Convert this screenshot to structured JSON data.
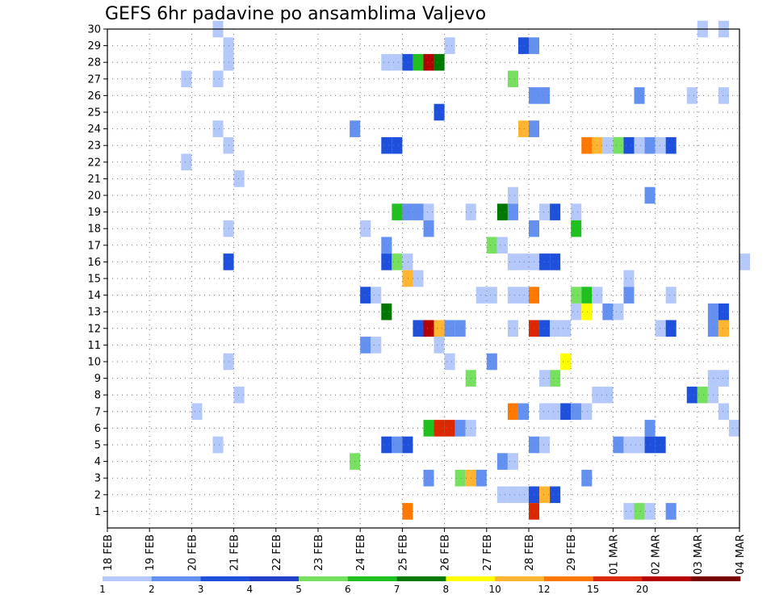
{
  "title": "GEFS 6hr padavine po ansamblima Valjevo",
  "chart_data": {
    "type": "heatmap",
    "title": "GEFS 6hr padavine po ansamblima Valjevo",
    "x_tick_labels": [
      "18 FEB",
      "19 FEB",
      "20 FEB",
      "21 FEB",
      "22 FEB",
      "23 FEB",
      "24 FEB",
      "25 FEB",
      "26 FEB",
      "27 FEB",
      "28 FEB",
      "29 FEB",
      "01 MAR",
      "02 MAR",
      "03 MAR",
      "04 MAR"
    ],
    "y_tick_labels": [
      "1",
      "2",
      "3",
      "4",
      "5",
      "6",
      "7",
      "8",
      "9",
      "10",
      "11",
      "12",
      "13",
      "14",
      "15",
      "16",
      "17",
      "18",
      "19",
      "20",
      "21",
      "22",
      "23",
      "24",
      "25",
      "26",
      "27",
      "28",
      "29",
      "30"
    ],
    "x_range_days": [
      0,
      15
    ],
    "y_range": [
      0,
      30
    ],
    "step_hours": 6,
    "grid": true,
    "colorbar": {
      "levels": [
        1,
        2,
        3,
        4,
        5,
        6,
        7,
        8,
        10,
        12,
        15,
        20
      ],
      "labels": [
        "1",
        "2",
        "3",
        "4",
        "5",
        "6",
        "7",
        "8",
        "10",
        "12",
        "15",
        "20"
      ],
      "colors": [
        "#b4c8fa",
        "#6490f0",
        "#1e50dc",
        "#2040c8",
        "#78e060",
        "#20c020",
        "#007800",
        "#ffff00",
        "#ffb432",
        "#ff7800",
        "#dc2800",
        "#b40000",
        "#780000"
      ]
    },
    "cells": [
      {
        "day": 2.5,
        "member": 30,
        "bin": 0
      },
      {
        "day": 14.0,
        "member": 30,
        "bin": 0
      },
      {
        "day": 14.5,
        "member": 30,
        "bin": 0
      },
      {
        "day": 2.75,
        "member": 29,
        "bin": 0
      },
      {
        "day": 8.0,
        "member": 29,
        "bin": 0
      },
      {
        "day": 9.75,
        "member": 29,
        "bin": 2
      },
      {
        "day": 10.0,
        "member": 29,
        "bin": 1
      },
      {
        "day": 2.75,
        "member": 28,
        "bin": 0
      },
      {
        "day": 6.5,
        "member": 28,
        "bin": 0
      },
      {
        "day": 6.75,
        "member": 28,
        "bin": 0
      },
      {
        "day": 7.0,
        "member": 28,
        "bin": 2
      },
      {
        "day": 7.25,
        "member": 28,
        "bin": 5
      },
      {
        "day": 7.5,
        "member": 28,
        "bin": 11
      },
      {
        "day": 7.75,
        "member": 28,
        "bin": 6
      },
      {
        "day": 1.75,
        "member": 27,
        "bin": 0
      },
      {
        "day": 2.5,
        "member": 27,
        "bin": 0
      },
      {
        "day": 9.5,
        "member": 27,
        "bin": 4
      },
      {
        "day": 10.0,
        "member": 26,
        "bin": 1
      },
      {
        "day": 10.25,
        "member": 26,
        "bin": 1
      },
      {
        "day": 12.5,
        "member": 26,
        "bin": 1
      },
      {
        "day": 13.75,
        "member": 26,
        "bin": 0
      },
      {
        "day": 14.5,
        "member": 26,
        "bin": 0
      },
      {
        "day": 7.75,
        "member": 25,
        "bin": 2
      },
      {
        "day": 2.5,
        "member": 24,
        "bin": 0
      },
      {
        "day": 5.75,
        "member": 24,
        "bin": 1
      },
      {
        "day": 9.75,
        "member": 24,
        "bin": 8
      },
      {
        "day": 10.0,
        "member": 24,
        "bin": 1
      },
      {
        "day": 2.75,
        "member": 23,
        "bin": 0
      },
      {
        "day": 6.5,
        "member": 23,
        "bin": 2
      },
      {
        "day": 6.75,
        "member": 23,
        "bin": 2
      },
      {
        "day": 11.25,
        "member": 23,
        "bin": 9
      },
      {
        "day": 11.5,
        "member": 23,
        "bin": 8
      },
      {
        "day": 11.75,
        "member": 23,
        "bin": 0
      },
      {
        "day": 12.0,
        "member": 23,
        "bin": 4
      },
      {
        "day": 12.25,
        "member": 23,
        "bin": 2
      },
      {
        "day": 12.5,
        "member": 23,
        "bin": 0
      },
      {
        "day": 12.75,
        "member": 23,
        "bin": 1
      },
      {
        "day": 13.0,
        "member": 23,
        "bin": 0
      },
      {
        "day": 13.25,
        "member": 23,
        "bin": 2
      },
      {
        "day": 1.75,
        "member": 22,
        "bin": 0
      },
      {
        "day": 3.0,
        "member": 21,
        "bin": 0
      },
      {
        "day": 9.5,
        "member": 20,
        "bin": 0
      },
      {
        "day": 12.75,
        "member": 20,
        "bin": 1
      },
      {
        "day": 6.75,
        "member": 19,
        "bin": 5
      },
      {
        "day": 7.0,
        "member": 19,
        "bin": 1
      },
      {
        "day": 7.25,
        "member": 19,
        "bin": 1
      },
      {
        "day": 7.5,
        "member": 19,
        "bin": 0
      },
      {
        "day": 8.5,
        "member": 19,
        "bin": 0
      },
      {
        "day": 9.25,
        "member": 19,
        "bin": 6
      },
      {
        "day": 9.5,
        "member": 19,
        "bin": 1
      },
      {
        "day": 10.25,
        "member": 19,
        "bin": 0
      },
      {
        "day": 10.5,
        "member": 19,
        "bin": 2
      },
      {
        "day": 11.0,
        "member": 19,
        "bin": 0
      },
      {
        "day": 2.75,
        "member": 18,
        "bin": 0
      },
      {
        "day": 6.0,
        "member": 18,
        "bin": 0
      },
      {
        "day": 7.5,
        "member": 18,
        "bin": 1
      },
      {
        "day": 10.0,
        "member": 18,
        "bin": 1
      },
      {
        "day": 11.0,
        "member": 18,
        "bin": 5
      },
      {
        "day": 6.5,
        "member": 17,
        "bin": 1
      },
      {
        "day": 9.0,
        "member": 17,
        "bin": 4
      },
      {
        "day": 9.25,
        "member": 17,
        "bin": 0
      },
      {
        "day": 2.75,
        "member": 16,
        "bin": 2
      },
      {
        "day": 6.5,
        "member": 16,
        "bin": 2
      },
      {
        "day": 6.75,
        "member": 16,
        "bin": 4
      },
      {
        "day": 7.0,
        "member": 16,
        "bin": 0
      },
      {
        "day": 9.5,
        "member": 16,
        "bin": 0
      },
      {
        "day": 9.75,
        "member": 16,
        "bin": 0
      },
      {
        "day": 10.0,
        "member": 16,
        "bin": 0
      },
      {
        "day": 10.25,
        "member": 16,
        "bin": 2
      },
      {
        "day": 10.5,
        "member": 16,
        "bin": 2
      },
      {
        "day": 15.0,
        "member": 16,
        "bin": 0
      },
      {
        "day": 7.0,
        "member": 15,
        "bin": 8
      },
      {
        "day": 7.25,
        "member": 15,
        "bin": 0
      },
      {
        "day": 12.25,
        "member": 15,
        "bin": 0
      },
      {
        "day": 6.0,
        "member": 14,
        "bin": 2
      },
      {
        "day": 6.25,
        "member": 14,
        "bin": 0
      },
      {
        "day": 8.75,
        "member": 14,
        "bin": 0
      },
      {
        "day": 9.0,
        "member": 14,
        "bin": 0
      },
      {
        "day": 9.5,
        "member": 14,
        "bin": 0
      },
      {
        "day": 9.75,
        "member": 14,
        "bin": 0
      },
      {
        "day": 10.0,
        "member": 14,
        "bin": 9
      },
      {
        "day": 11.0,
        "member": 14,
        "bin": 4
      },
      {
        "day": 11.25,
        "member": 14,
        "bin": 5
      },
      {
        "day": 11.5,
        "member": 14,
        "bin": 0
      },
      {
        "day": 12.25,
        "member": 14,
        "bin": 1
      },
      {
        "day": 13.25,
        "member": 14,
        "bin": 0
      },
      {
        "day": 6.5,
        "member": 13,
        "bin": 6
      },
      {
        "day": 11.0,
        "member": 13,
        "bin": 0
      },
      {
        "day": 11.25,
        "member": 13,
        "bin": 7
      },
      {
        "day": 11.75,
        "member": 13,
        "bin": 1
      },
      {
        "day": 12.0,
        "member": 13,
        "bin": 0
      },
      {
        "day": 14.25,
        "member": 13,
        "bin": 1
      },
      {
        "day": 14.5,
        "member": 13,
        "bin": 2
      },
      {
        "day": 7.25,
        "member": 12,
        "bin": 2
      },
      {
        "day": 7.5,
        "member": 12,
        "bin": 11
      },
      {
        "day": 7.75,
        "member": 12,
        "bin": 8
      },
      {
        "day": 8.0,
        "member": 12,
        "bin": 1
      },
      {
        "day": 8.25,
        "member": 12,
        "bin": 1
      },
      {
        "day": 9.5,
        "member": 12,
        "bin": 0
      },
      {
        "day": 10.0,
        "member": 12,
        "bin": 10
      },
      {
        "day": 10.25,
        "member": 12,
        "bin": 2
      },
      {
        "day": 10.5,
        "member": 12,
        "bin": 0
      },
      {
        "day": 10.75,
        "member": 12,
        "bin": 0
      },
      {
        "day": 13.0,
        "member": 12,
        "bin": 0
      },
      {
        "day": 13.25,
        "member": 12,
        "bin": 2
      },
      {
        "day": 14.25,
        "member": 12,
        "bin": 1
      },
      {
        "day": 14.5,
        "member": 12,
        "bin": 8
      },
      {
        "day": 6.0,
        "member": 11,
        "bin": 1
      },
      {
        "day": 6.25,
        "member": 11,
        "bin": 0
      },
      {
        "day": 7.75,
        "member": 11,
        "bin": 0
      },
      {
        "day": 2.75,
        "member": 10,
        "bin": 0
      },
      {
        "day": 8.0,
        "member": 10,
        "bin": 0
      },
      {
        "day": 9.0,
        "member": 10,
        "bin": 1
      },
      {
        "day": 10.75,
        "member": 10,
        "bin": 7
      },
      {
        "day": 8.5,
        "member": 9,
        "bin": 4
      },
      {
        "day": 10.25,
        "member": 9,
        "bin": 0
      },
      {
        "day": 10.5,
        "member": 9,
        "bin": 4
      },
      {
        "day": 14.25,
        "member": 9,
        "bin": 0
      },
      {
        "day": 14.5,
        "member": 9,
        "bin": 0
      },
      {
        "day": 3.0,
        "member": 8,
        "bin": 0
      },
      {
        "day": 11.5,
        "member": 8,
        "bin": 0
      },
      {
        "day": 11.75,
        "member": 8,
        "bin": 0
      },
      {
        "day": 13.75,
        "member": 8,
        "bin": 2
      },
      {
        "day": 14.0,
        "member": 8,
        "bin": 4
      },
      {
        "day": 14.25,
        "member": 8,
        "bin": 0
      },
      {
        "day": 2.0,
        "member": 7,
        "bin": 0
      },
      {
        "day": 9.5,
        "member": 7,
        "bin": 9
      },
      {
        "day": 9.75,
        "member": 7,
        "bin": 1
      },
      {
        "day": 10.25,
        "member": 7,
        "bin": 0
      },
      {
        "day": 10.5,
        "member": 7,
        "bin": 0
      },
      {
        "day": 10.75,
        "member": 7,
        "bin": 2
      },
      {
        "day": 11.0,
        "member": 7,
        "bin": 1
      },
      {
        "day": 11.25,
        "member": 7,
        "bin": 0
      },
      {
        "day": 14.5,
        "member": 7,
        "bin": 0
      },
      {
        "day": 7.5,
        "member": 6,
        "bin": 5
      },
      {
        "day": 7.75,
        "member": 6,
        "bin": 10
      },
      {
        "day": 8.0,
        "member": 6,
        "bin": 10
      },
      {
        "day": 8.25,
        "member": 6,
        "bin": 1
      },
      {
        "day": 8.5,
        "member": 6,
        "bin": 0
      },
      {
        "day": 12.75,
        "member": 6,
        "bin": 1
      },
      {
        "day": 14.75,
        "member": 6,
        "bin": 0
      },
      {
        "day": 2.5,
        "member": 5,
        "bin": 0
      },
      {
        "day": 6.5,
        "member": 5,
        "bin": 2
      },
      {
        "day": 6.75,
        "member": 5,
        "bin": 1
      },
      {
        "day": 7.0,
        "member": 5,
        "bin": 2
      },
      {
        "day": 10.0,
        "member": 5,
        "bin": 1
      },
      {
        "day": 10.25,
        "member": 5,
        "bin": 0
      },
      {
        "day": 12.0,
        "member": 5,
        "bin": 1
      },
      {
        "day": 12.25,
        "member": 5,
        "bin": 0
      },
      {
        "day": 12.5,
        "member": 5,
        "bin": 0
      },
      {
        "day": 12.75,
        "member": 5,
        "bin": 2
      },
      {
        "day": 13.0,
        "member": 5,
        "bin": 2
      },
      {
        "day": 5.75,
        "member": 4,
        "bin": 4
      },
      {
        "day": 9.25,
        "member": 4,
        "bin": 1
      },
      {
        "day": 9.5,
        "member": 4,
        "bin": 0
      },
      {
        "day": 7.5,
        "member": 3,
        "bin": 1
      },
      {
        "day": 8.25,
        "member": 3,
        "bin": 4
      },
      {
        "day": 8.5,
        "member": 3,
        "bin": 8
      },
      {
        "day": 8.75,
        "member": 3,
        "bin": 1
      },
      {
        "day": 11.25,
        "member": 3,
        "bin": 1
      },
      {
        "day": 9.25,
        "member": 2,
        "bin": 0
      },
      {
        "day": 9.5,
        "member": 2,
        "bin": 0
      },
      {
        "day": 9.75,
        "member": 2,
        "bin": 0
      },
      {
        "day": 10.0,
        "member": 2,
        "bin": 2
      },
      {
        "day": 10.25,
        "member": 2,
        "bin": 8
      },
      {
        "day": 10.5,
        "member": 2,
        "bin": 2
      },
      {
        "day": 7.0,
        "member": 1,
        "bin": 9
      },
      {
        "day": 10.0,
        "member": 1,
        "bin": 10
      },
      {
        "day": 12.25,
        "member": 1,
        "bin": 0
      },
      {
        "day": 12.5,
        "member": 1,
        "bin": 4
      },
      {
        "day": 12.75,
        "member": 1,
        "bin": 0
      },
      {
        "day": 13.25,
        "member": 1,
        "bin": 1
      }
    ]
  }
}
